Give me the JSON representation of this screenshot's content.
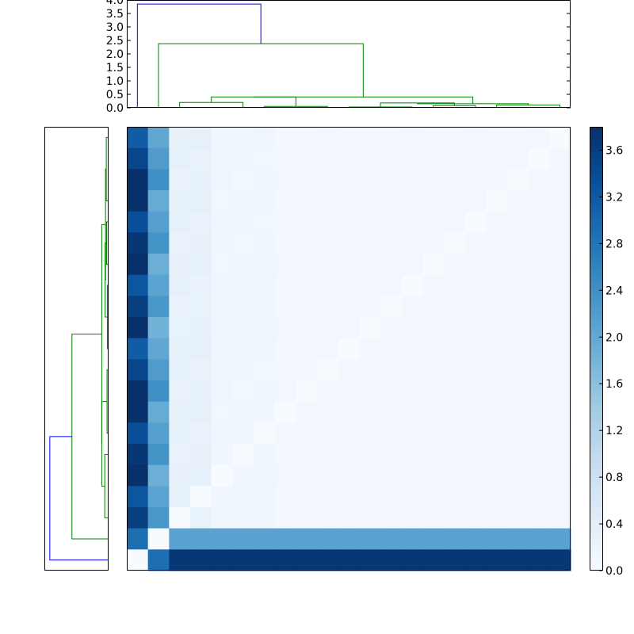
{
  "chart_data": {
    "type": "heatmap",
    "description_of_layout": "clustered heatmap with top and left dendrograms and a colorbar",
    "colormap": "Blues",
    "colors": {
      "cluster_root": "#0000ff",
      "cluster_branch": "#008000"
    },
    "top_dendrogram": {
      "ylim": [
        0.0,
        4.0
      ],
      "tick_labels": [
        "0.0",
        "0.5",
        "1.0",
        "1.5",
        "2.0",
        "2.5",
        "3.0",
        "3.5",
        "4.0"
      ],
      "merge_heights": [
        3.85,
        2.38,
        0.4,
        0.2,
        0.18,
        0.15,
        0.12,
        0.1,
        0.08,
        0.05,
        0.03,
        0.02,
        0.01
      ]
    },
    "colorbar": {
      "range": [
        0.0,
        3.8
      ],
      "tick_labels": [
        "0.0",
        "0.4",
        "0.8",
        "1.2",
        "1.6",
        "2.0",
        "2.4",
        "2.8",
        "3.2",
        "3.6"
      ]
    },
    "matrix_size": 21,
    "matrix_structure": {
      "column_0": 3.7,
      "column_1": 2.15,
      "columns_2_3": 0.3,
      "columns_4_6": 0.15,
      "other_columns": 0.1,
      "diagonal": 0.0,
      "row_1_others": 2.1,
      "row_0_to_col_1": 2.9,
      "row_0_others": 3.7
    }
  }
}
